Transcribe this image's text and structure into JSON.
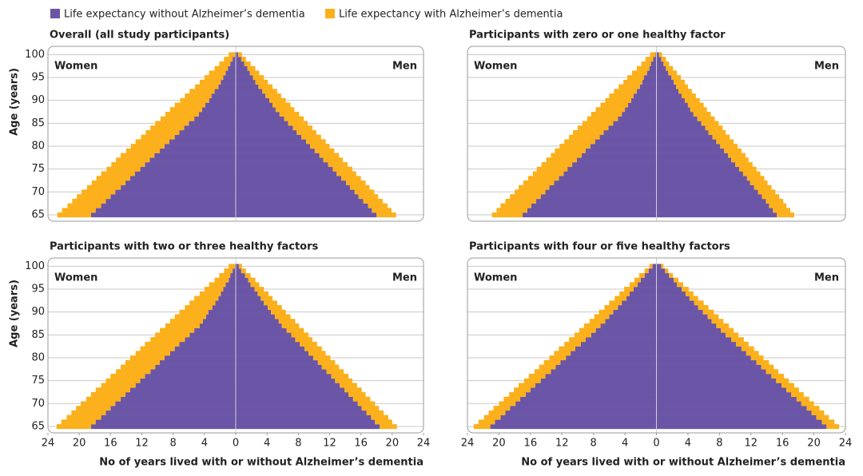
{
  "chart_data": [
    {
      "type": "pyramid",
      "title": "Overall (all study participants)",
      "ylabel": "Age (years)",
      "left_label": "Women",
      "right_label": "Men",
      "show_ytick_labels": true,
      "categories": [
        65,
        66,
        67,
        68,
        69,
        70,
        71,
        72,
        73,
        74,
        75,
        76,
        77,
        78,
        79,
        80,
        81,
        82,
        83,
        84,
        85,
        86,
        87,
        88,
        89,
        90,
        91,
        92,
        93,
        94,
        95,
        96,
        97,
        98,
        99,
        100
      ],
      "ylim": [
        63.6,
        101.8
      ],
      "yticks": [
        65,
        70,
        75,
        80,
        85,
        90,
        95,
        100
      ],
      "xlim": [
        -24,
        24
      ],
      "grid": true,
      "series": [
        {
          "name": "Life expectancy without Alzheimer’s dementia",
          "color": "#6b55a6",
          "women": [
            18.5,
            17.9,
            17.2,
            16.6,
            16.0,
            15.4,
            14.7,
            14.1,
            13.5,
            12.9,
            12.2,
            11.6,
            11.0,
            10.4,
            9.7,
            9.1,
            8.5,
            7.8,
            7.2,
            6.6,
            6.0,
            5.3,
            4.7,
            4.3,
            3.9,
            3.4,
            3.1,
            2.7,
            2.2,
            1.9,
            1.6,
            1.3,
            1.0,
            0.7,
            0.4,
            0.1
          ],
          "men": [
            18.0,
            17.4,
            16.9,
            16.3,
            15.7,
            15.2,
            14.6,
            14.1,
            13.5,
            12.9,
            12.4,
            11.8,
            11.2,
            10.7,
            10.1,
            9.5,
            9.0,
            8.4,
            7.8,
            7.3,
            6.7,
            6.2,
            5.6,
            5.1,
            4.7,
            4.3,
            3.8,
            3.4,
            2.9,
            2.5,
            2.2,
            1.8,
            1.5,
            1.1,
            0.7,
            0.3
          ]
        },
        {
          "name": "Life expectancy with Alzheimer’s dementia",
          "color": "#fbb01c",
          "women": [
            4.3,
            4.3,
            4.3,
            4.3,
            4.3,
            4.3,
            4.3,
            4.3,
            4.3,
            4.3,
            4.3,
            4.3,
            4.3,
            4.3,
            4.3,
            4.3,
            4.3,
            4.3,
            4.3,
            4.3,
            4.3,
            4.3,
            4.3,
            4.1,
            3.9,
            3.7,
            3.4,
            3.2,
            3.0,
            2.7,
            2.4,
            2.1,
            1.7,
            1.4,
            1.1,
            0.8
          ],
          "men": [
            2.5,
            2.5,
            2.5,
            2.5,
            2.5,
            2.5,
            2.5,
            2.5,
            2.5,
            2.5,
            2.5,
            2.5,
            2.5,
            2.5,
            2.5,
            2.5,
            2.5,
            2.5,
            2.5,
            2.5,
            2.5,
            2.5,
            2.5,
            2.4,
            2.3,
            2.1,
            2.0,
            1.9,
            1.8,
            1.6,
            1.4,
            1.2,
            1.0,
            0.8,
            0.6,
            0.5
          ]
        }
      ]
    },
    {
      "type": "pyramid",
      "title": "Participants with zero or one healthy factor",
      "left_label": "Women",
      "right_label": "Men",
      "show_ytick_labels": false,
      "categories": [
        65,
        66,
        67,
        68,
        69,
        70,
        71,
        72,
        73,
        74,
        75,
        76,
        77,
        78,
        79,
        80,
        81,
        82,
        83,
        84,
        85,
        86,
        87,
        88,
        89,
        90,
        91,
        92,
        93,
        94,
        95,
        96,
        97,
        98,
        99,
        100
      ],
      "ylim": [
        63.6,
        101.8
      ],
      "yticks": [
        65,
        70,
        75,
        80,
        85,
        90,
        95,
        100
      ],
      "xlim": [
        -24,
        24
      ],
      "grid": true,
      "series": [
        {
          "name": "Life expectancy without Alzheimer’s dementia",
          "color": "#6b55a6",
          "women": [
            17.0,
            16.4,
            15.9,
            15.3,
            14.7,
            14.1,
            13.6,
            13.0,
            12.4,
            11.8,
            11.3,
            10.7,
            10.1,
            9.5,
            9.0,
            8.4,
            7.8,
            7.2,
            6.7,
            6.1,
            5.5,
            4.9,
            4.4,
            4.0,
            3.6,
            3.2,
            2.9,
            2.5,
            2.1,
            1.8,
            1.6,
            1.2,
            0.9,
            0.7,
            0.4,
            0.1
          ],
          "men": [
            15.3,
            14.8,
            14.3,
            13.9,
            13.4,
            12.9,
            12.4,
            11.9,
            11.5,
            11.0,
            10.5,
            10.0,
            9.5,
            9.1,
            8.6,
            8.1,
            7.6,
            7.1,
            6.6,
            6.2,
            5.7,
            5.2,
            4.7,
            4.3,
            4.0,
            3.6,
            3.2,
            2.8,
            2.5,
            2.2,
            1.9,
            1.5,
            1.2,
            0.9,
            0.6,
            0.3
          ]
        },
        {
          "name": "Life expectancy with Alzheimer’s dementia",
          "color": "#fbb01c",
          "women": [
            3.9,
            3.9,
            3.9,
            3.9,
            3.9,
            3.9,
            3.9,
            3.9,
            3.9,
            3.9,
            3.9,
            3.9,
            3.9,
            3.9,
            3.9,
            3.9,
            3.9,
            3.9,
            3.9,
            3.9,
            3.9,
            3.9,
            3.9,
            3.7,
            3.5,
            3.3,
            3.1,
            2.9,
            2.7,
            2.4,
            2.1,
            1.9,
            1.6,
            1.2,
            1.0,
            0.7
          ],
          "men": [
            2.2,
            2.2,
            2.2,
            2.2,
            2.2,
            2.2,
            2.2,
            2.2,
            2.2,
            2.2,
            2.2,
            2.2,
            2.2,
            2.2,
            2.2,
            2.2,
            2.2,
            2.2,
            2.2,
            2.2,
            2.2,
            2.2,
            2.2,
            2.1,
            2.0,
            1.9,
            1.8,
            1.7,
            1.5,
            1.4,
            1.2,
            1.1,
            0.9,
            0.7,
            0.6,
            0.4
          ]
        }
      ]
    },
    {
      "type": "pyramid",
      "title": "Participants with two or three healthy factors",
      "ylabel": "Age (years)",
      "xlabel": "No of years lived with or without Alzheimer’s dementia",
      "left_label": "Women",
      "right_label": "Men",
      "show_ytick_labels": true,
      "categories": [
        65,
        66,
        67,
        68,
        69,
        70,
        71,
        72,
        73,
        74,
        75,
        76,
        77,
        78,
        79,
        80,
        81,
        82,
        83,
        84,
        85,
        86,
        87,
        88,
        89,
        90,
        91,
        92,
        93,
        94,
        95,
        96,
        97,
        98,
        99,
        100
      ],
      "ylim": [
        63.6,
        101.8
      ],
      "yticks": [
        65,
        70,
        75,
        80,
        85,
        90,
        95,
        100
      ],
      "xlim": [
        -24,
        24
      ],
      "grid": true,
      "xticks": [
        {
          "value": -24,
          "label": "24"
        },
        {
          "value": -20,
          "label": "20"
        },
        {
          "value": -16,
          "label": "16"
        },
        {
          "value": -12,
          "label": "12"
        },
        {
          "value": -8,
          "label": "8"
        },
        {
          "value": -4,
          "label": "4"
        },
        0,
        4,
        8,
        12,
        16,
        20,
        24
      ],
      "series": [
        {
          "name": "Life expectancy without Alzheimer’s dementia",
          "color": "#6b55a6",
          "women": [
            18.5,
            17.9,
            17.2,
            16.6,
            16.0,
            15.4,
            14.7,
            14.1,
            13.5,
            12.8,
            12.2,
            11.6,
            10.9,
            10.3,
            9.7,
            9.1,
            8.4,
            7.8,
            7.2,
            6.5,
            5.9,
            5.3,
            4.6,
            4.2,
            3.8,
            3.5,
            3.0,
            2.6,
            2.2,
            1.9,
            1.6,
            1.3,
            0.9,
            0.7,
            0.4,
            0.1
          ],
          "men": [
            18.4,
            17.8,
            17.3,
            16.7,
            16.1,
            15.6,
            15.0,
            14.4,
            13.9,
            13.3,
            12.7,
            12.2,
            11.6,
            11.0,
            10.5,
            9.9,
            9.3,
            8.8,
            8.2,
            7.6,
            7.1,
            6.5,
            5.9,
            5.5,
            5.0,
            4.5,
            4.1,
            3.6,
            3.2,
            2.8,
            2.4,
            1.9,
            1.6,
            1.2,
            0.7,
            0.4
          ]
        },
        {
          "name": "Life expectancy with Alzheimer’s dementia",
          "color": "#fbb01c",
          "women": [
            4.4,
            4.4,
            4.4,
            4.4,
            4.4,
            4.4,
            4.4,
            4.4,
            4.4,
            4.4,
            4.4,
            4.4,
            4.4,
            4.4,
            4.4,
            4.4,
            4.4,
            4.4,
            4.4,
            4.4,
            4.4,
            4.4,
            4.4,
            4.2,
            4.0,
            3.7,
            3.5,
            3.3,
            3.1,
            2.7,
            2.4,
            2.1,
            1.8,
            1.4,
            1.1,
            0.8
          ],
          "men": [
            2.2,
            2.2,
            2.2,
            2.2,
            2.2,
            2.2,
            2.2,
            2.2,
            2.2,
            2.2,
            2.2,
            2.2,
            2.2,
            2.2,
            2.2,
            2.2,
            2.2,
            2.2,
            2.2,
            2.2,
            2.2,
            2.2,
            2.2,
            2.1,
            2.0,
            1.9,
            1.8,
            1.7,
            1.5,
            1.4,
            1.2,
            1.1,
            0.9,
            0.7,
            0.6,
            0.4
          ]
        }
      ]
    },
    {
      "type": "pyramid",
      "title": "Participants with four or five healthy factors",
      "xlabel": "No of years lived with or without Alzheimer’s dementia",
      "left_label": "Women",
      "right_label": "Men",
      "show_ytick_labels": false,
      "categories": [
        65,
        66,
        67,
        68,
        69,
        70,
        71,
        72,
        73,
        74,
        75,
        76,
        77,
        78,
        79,
        80,
        81,
        82,
        83,
        84,
        85,
        86,
        87,
        88,
        89,
        90,
        91,
        92,
        93,
        94,
        95,
        96,
        97,
        98,
        99,
        100
      ],
      "ylim": [
        63.6,
        101.8
      ],
      "yticks": [
        65,
        70,
        75,
        80,
        85,
        90,
        95,
        100
      ],
      "xlim": [
        -24,
        24
      ],
      "grid": true,
      "xticks": [
        {
          "value": -24,
          "label": "24"
        },
        {
          "value": -20,
          "label": "20"
        },
        {
          "value": -16,
          "label": "16"
        },
        {
          "value": -12,
          "label": "12"
        },
        {
          "value": -8,
          "label": "8"
        },
        {
          "value": -4,
          "label": "4"
        },
        0,
        4,
        8,
        12,
        16,
        20,
        24
      ],
      "series": [
        {
          "name": "Life expectancy without Alzheimer’s dementia",
          "color": "#6b55a6",
          "women": [
            21.1,
            20.5,
            19.8,
            19.2,
            18.6,
            17.9,
            17.3,
            16.6,
            16.0,
            15.4,
            14.7,
            14.1,
            13.4,
            12.8,
            12.2,
            11.5,
            10.9,
            10.3,
            9.6,
            9.0,
            8.3,
            7.7,
            7.1,
            6.5,
            6.0,
            5.5,
            4.9,
            4.4,
            3.8,
            3.4,
            2.9,
            2.4,
            2.0,
            1.5,
            1.0,
            0.5
          ],
          "men": [
            21.6,
            21.0,
            20.3,
            19.7,
            19.1,
            18.4,
            17.8,
            17.1,
            16.5,
            15.9,
            15.2,
            14.6,
            13.9,
            13.3,
            12.7,
            12.0,
            11.4,
            10.8,
            10.1,
            9.5,
            8.8,
            8.2,
            7.6,
            7.0,
            6.5,
            5.9,
            5.3,
            4.8,
            4.2,
            3.7,
            3.2,
            2.6,
            2.2,
            1.6,
            1.1,
            0.6
          ]
        },
        {
          "name": "Life expectancy with Alzheimer’s dementia",
          "color": "#fbb01c",
          "women": [
            2.1,
            2.1,
            2.1,
            2.1,
            2.1,
            2.1,
            2.1,
            2.1,
            2.1,
            2.1,
            2.1,
            2.1,
            2.1,
            2.1,
            2.1,
            2.1,
            2.1,
            2.1,
            2.1,
            2.1,
            2.1,
            2.1,
            2.1,
            2.0,
            1.9,
            1.8,
            1.7,
            1.6,
            1.5,
            1.3,
            1.2,
            1.0,
            0.8,
            0.7,
            0.5,
            0.4
          ],
          "men": [
            1.6,
            1.6,
            1.6,
            1.6,
            1.6,
            1.6,
            1.6,
            1.6,
            1.6,
            1.6,
            1.6,
            1.6,
            1.6,
            1.6,
            1.6,
            1.6,
            1.6,
            1.6,
            1.6,
            1.6,
            1.6,
            1.6,
            1.6,
            1.5,
            1.4,
            1.4,
            1.3,
            1.2,
            1.1,
            1.0,
            0.9,
            0.8,
            0.6,
            0.5,
            0.4,
            0.3
          ]
        }
      ]
    }
  ]
}
